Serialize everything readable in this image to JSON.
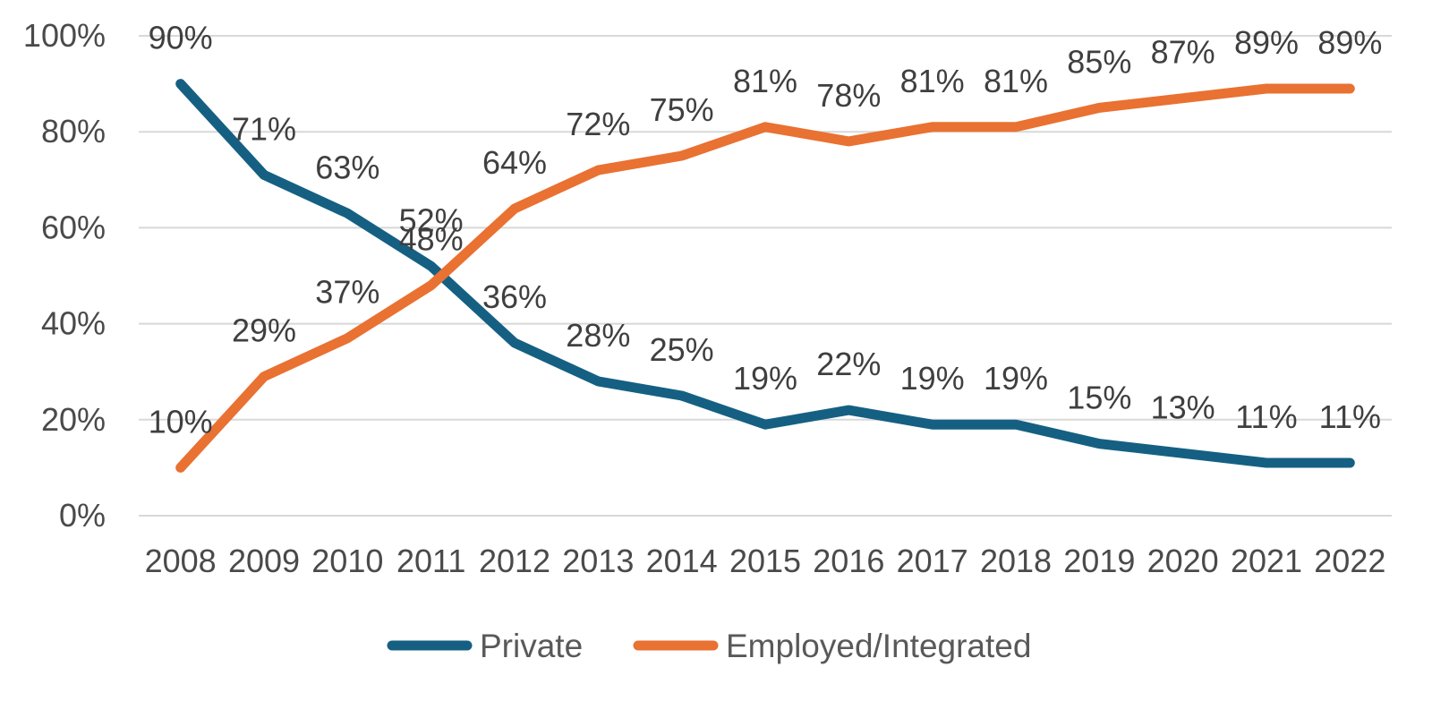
{
  "chart_data": {
    "type": "line",
    "categories": [
      "2008",
      "2009",
      "2010",
      "2011",
      "2012",
      "2013",
      "2014",
      "2015",
      "2016",
      "2017",
      "2018",
      "2019",
      "2020",
      "2021",
      "2022"
    ],
    "series": [
      {
        "name": "Private",
        "color": "#156082",
        "values": [
          90,
          71,
          63,
          52,
          36,
          28,
          25,
          19,
          22,
          19,
          19,
          15,
          13,
          11,
          11
        ],
        "labels": [
          "90%",
          "71%",
          "63%",
          "52%",
          "36%",
          "28%",
          "25%",
          "19%",
          "22%",
          "19%",
          "19%",
          "15%",
          "13%",
          "11%",
          "11%"
        ]
      },
      {
        "name": "Employed/Integrated",
        "color": "#E97132",
        "values": [
          10,
          29,
          37,
          48,
          64,
          72,
          75,
          81,
          78,
          81,
          81,
          85,
          87,
          89,
          89
        ],
        "labels": [
          "10%",
          "29%",
          "37%",
          "48%",
          "64%",
          "72%",
          "75%",
          "81%",
          "78%",
          "81%",
          "81%",
          "85%",
          "87%",
          "89%",
          "89%"
        ]
      }
    ],
    "title": "",
    "xlabel": "",
    "ylabel": "",
    "ylim": [
      0,
      100
    ],
    "ytick_step": 20,
    "ytick_labels": [
      "0%",
      "20%",
      "40%",
      "60%",
      "80%",
      "100%"
    ],
    "data_label_format": "{value}%",
    "grid": "horizontal",
    "legend_position": "bottom"
  },
  "legend": {
    "items": [
      {
        "label": "Private",
        "color": "#156082"
      },
      {
        "label": "Employed/Integrated",
        "color": "#E97132"
      }
    ]
  },
  "colors": {
    "background": "#FFFFFF",
    "gridline": "#D8D8D8",
    "axis_text": "#4A4A4A",
    "data_label_text": "#3F3F3F",
    "legend_text": "#595959"
  }
}
